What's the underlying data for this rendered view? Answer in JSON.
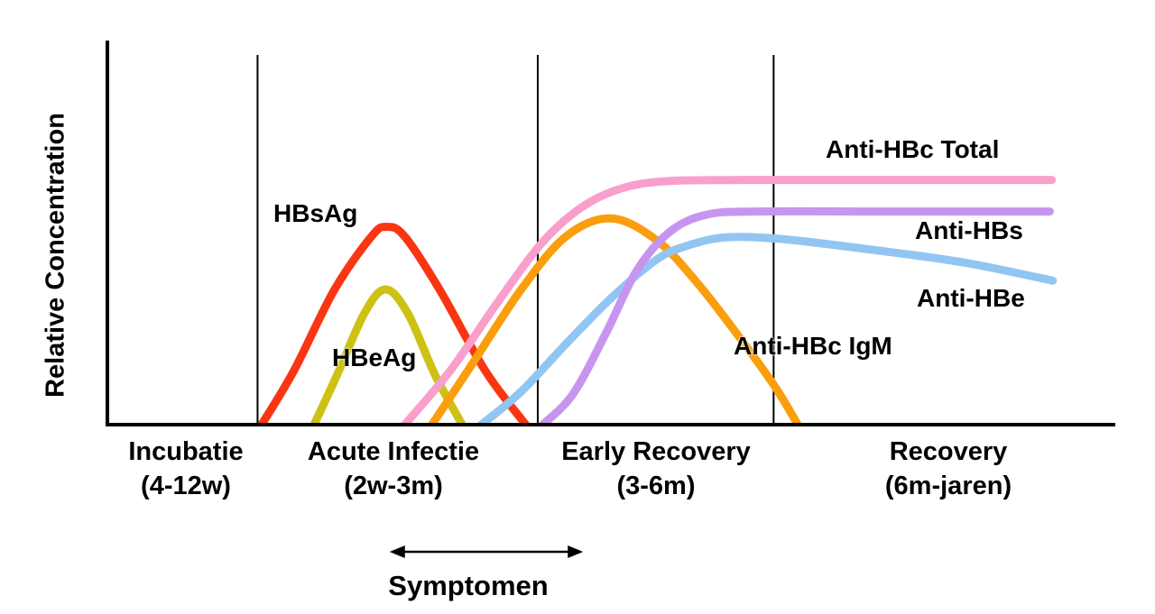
{
  "figure": {
    "background": "#ffffff",
    "axis_color": "#000000",
    "ylabel": "Relative Concentration"
  },
  "chart_data": {
    "type": "line",
    "title": "",
    "xlabel": "",
    "ylabel": "Relative Concentration",
    "y_axis": {
      "numeric": false,
      "range": [
        0,
        1
      ],
      "gridlines": false,
      "ticks": []
    },
    "x_axis": {
      "numeric": false,
      "unit_fraction_of_timeline": [
        0,
        1
      ]
    },
    "phases": [
      {
        "name": "Incubatie",
        "duration": "(4-12w)",
        "start": 0.0,
        "end": 0.149
      },
      {
        "name": "Acute Infectie",
        "duration": "(2w-3m)",
        "start": 0.149,
        "end": 0.427
      },
      {
        "name": "Early Recovery",
        "duration": "(3-6m)",
        "start": 0.427,
        "end": 0.661
      },
      {
        "name": "Recovery",
        "duration": "(6m-jaren)",
        "start": 0.661,
        "end": 1.0
      }
    ],
    "series": [
      {
        "name": "HBsAg",
        "color": "#F93512",
        "shape": "bump",
        "points": [
          [
            0.153,
            0
          ],
          [
            0.185,
            0.14
          ],
          [
            0.225,
            0.35
          ],
          [
            0.262,
            0.49
          ],
          [
            0.277,
            0.515
          ],
          [
            0.295,
            0.49
          ],
          [
            0.33,
            0.35
          ],
          [
            0.375,
            0.14
          ],
          [
            0.415,
            0
          ]
        ]
      },
      {
        "name": "HBeAg",
        "color": "#CDC213",
        "shape": "bump",
        "points": [
          [
            0.205,
            0
          ],
          [
            0.228,
            0.13
          ],
          [
            0.255,
            0.29
          ],
          [
            0.276,
            0.352
          ],
          [
            0.298,
            0.29
          ],
          [
            0.325,
            0.13
          ],
          [
            0.352,
            0
          ]
        ]
      },
      {
        "name": "Anti-HBc Total",
        "color": "#F99FCB",
        "shape": "rise-plateau",
        "points": [
          [
            0.295,
            0
          ],
          [
            0.34,
            0.14
          ],
          [
            0.385,
            0.31
          ],
          [
            0.43,
            0.47
          ],
          [
            0.47,
            0.565
          ],
          [
            0.51,
            0.615
          ],
          [
            0.555,
            0.634
          ],
          [
            0.63,
            0.637
          ],
          [
            0.78,
            0.637
          ],
          [
            0.937,
            0.637
          ]
        ]
      },
      {
        "name": "Anti-HBc IgM",
        "color": "#FA9E0D",
        "shape": "bump",
        "points": [
          [
            0.322,
            0
          ],
          [
            0.36,
            0.15
          ],
          [
            0.41,
            0.35
          ],
          [
            0.455,
            0.49
          ],
          [
            0.5,
            0.537
          ],
          [
            0.545,
            0.48
          ],
          [
            0.585,
            0.37
          ],
          [
            0.625,
            0.235
          ],
          [
            0.662,
            0.1
          ],
          [
            0.685,
            0
          ]
        ]
      },
      {
        "name": "Anti-HBe",
        "color": "#92C5F1",
        "shape": "rise-slow-decline",
        "points": [
          [
            0.371,
            0
          ],
          [
            0.41,
            0.085
          ],
          [
            0.455,
            0.21
          ],
          [
            0.5,
            0.33
          ],
          [
            0.545,
            0.43
          ],
          [
            0.578,
            0.468
          ],
          [
            0.615,
            0.488
          ],
          [
            0.67,
            0.483
          ],
          [
            0.76,
            0.455
          ],
          [
            0.85,
            0.422
          ],
          [
            0.938,
            0.375
          ]
        ]
      },
      {
        "name": "Anti-HBs",
        "color": "#C795EF",
        "shape": "rise-plateau",
        "points": [
          [
            0.432,
            0
          ],
          [
            0.462,
            0.08
          ],
          [
            0.495,
            0.24
          ],
          [
            0.525,
            0.4
          ],
          [
            0.557,
            0.5
          ],
          [
            0.592,
            0.545
          ],
          [
            0.64,
            0.555
          ],
          [
            0.78,
            0.555
          ],
          [
            0.935,
            0.555
          ]
        ]
      }
    ],
    "annotations": {
      "symptomen": {
        "label": "Symptomen",
        "x1": 0.28,
        "x2": 0.472
      }
    },
    "legend": "labels placed next to curves"
  }
}
